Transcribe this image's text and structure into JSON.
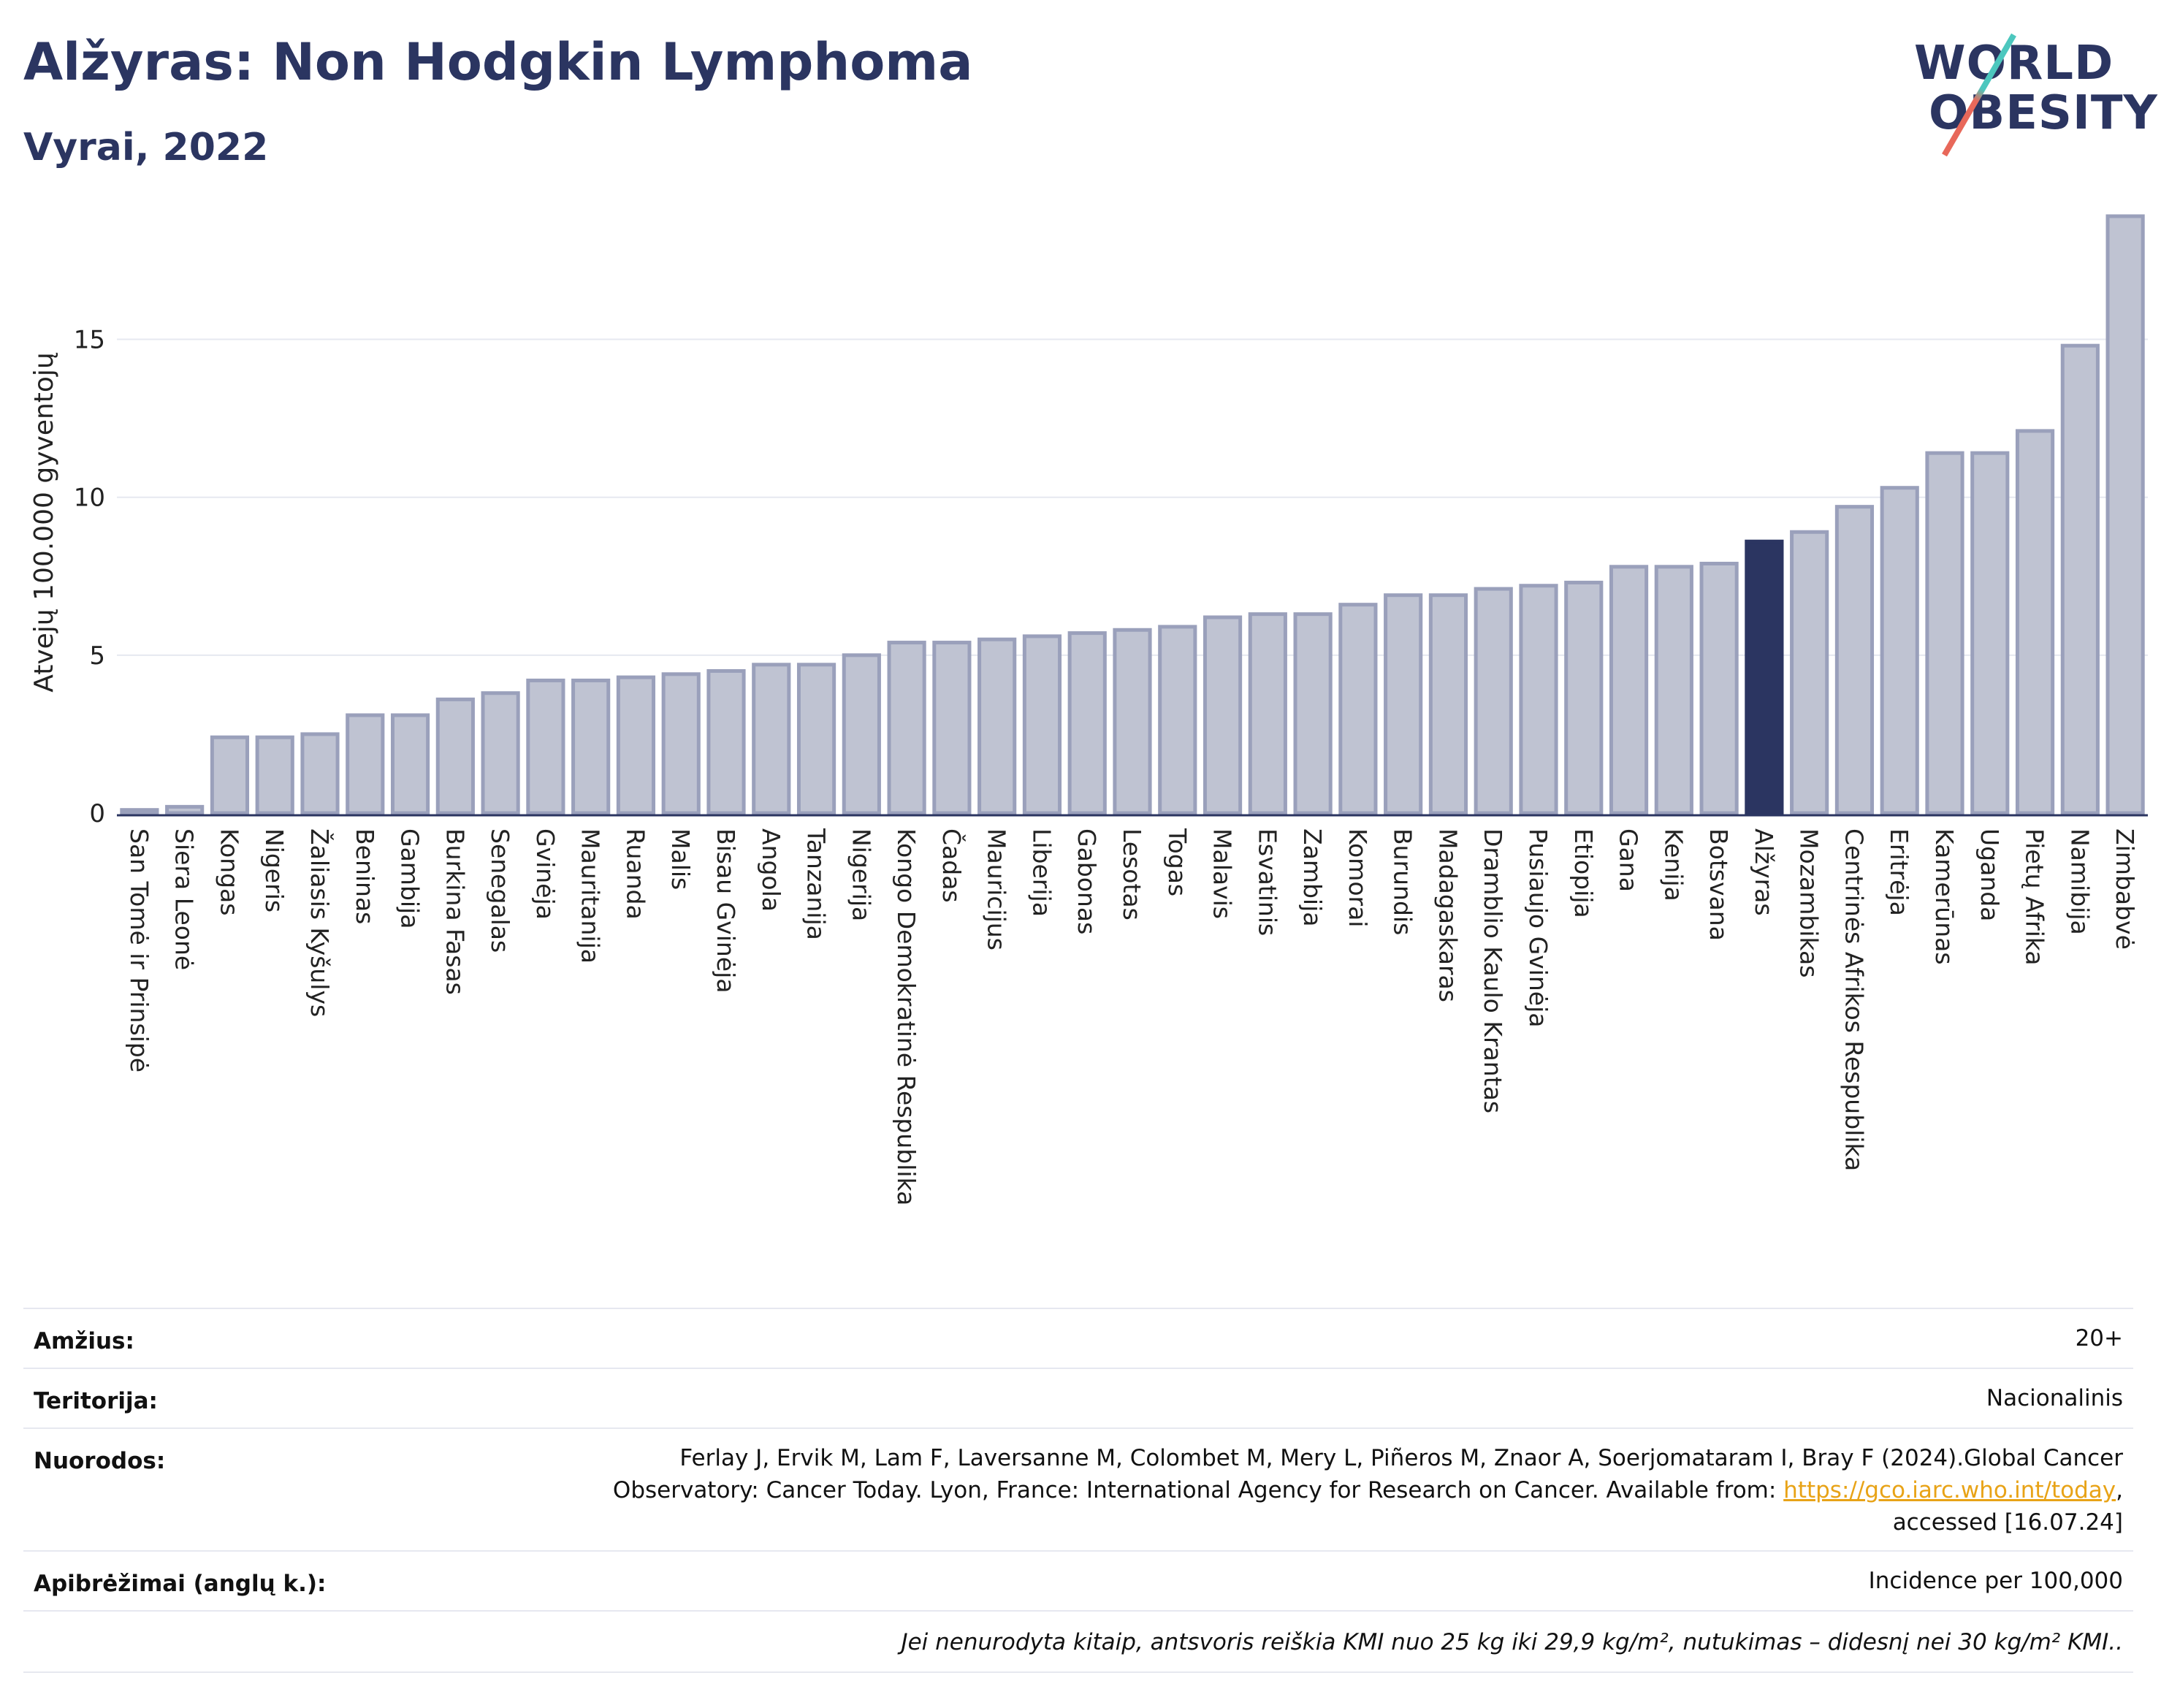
{
  "header": {
    "title": "Alžyras: Non Hodgkin Lymphoma",
    "subtitle": "Vyrai, 2022"
  },
  "logo": {
    "line1": "WORLD",
    "line2": "OBESITY"
  },
  "chart_data": {
    "type": "bar",
    "ylabel": "Atvejų 100.000 gyventojų",
    "ylim": [
      0,
      19.5
    ],
    "yticks": [
      0,
      5,
      10,
      15
    ],
    "grid": true,
    "highlight": "Alžyras",
    "colors": {
      "bar": "#bfc3d2",
      "bar_border": "#9aa0bb",
      "highlight": "#2b3561",
      "axis": "#2b3561",
      "grid": "#e6e8f0"
    },
    "categories": [
      "San Tomė ir Prinsipė",
      "Siera Leonė",
      "Kongas",
      "Nigeris",
      "Žaliasis Kyšulys",
      "Beninas",
      "Gambija",
      "Burkina Fasas",
      "Senegalas",
      "Gvinėja",
      "Mauritanija",
      "Ruanda",
      "Malis",
      "Bisau Gvinėja",
      "Angola",
      "Tanzanija",
      "Nigerija",
      "Kongo Demokratinė Respublika",
      "Čadas",
      "Mauricijus",
      "Liberija",
      "Gabonas",
      "Lesotas",
      "Togas",
      "Malavis",
      "Esvatinis",
      "Zambija",
      "Komorai",
      "Burundis",
      "Madagaskaras",
      "Dramblio Kaulo Krantas",
      "Pusiaujo Gvinėja",
      "Etiopija",
      "Gana",
      "Kenija",
      "Botsvana",
      "Alžyras",
      "Mozambikas",
      "Centrinės Afrikos Respublika",
      "Eritrėja",
      "Kamerūnas",
      "Uganda",
      "Pietų Afrika",
      "Namibija",
      "Zimbabvė"
    ],
    "values": [
      0.1,
      0.2,
      2.4,
      2.4,
      2.5,
      3.1,
      3.1,
      3.6,
      3.8,
      4.2,
      4.2,
      4.3,
      4.4,
      4.5,
      4.7,
      4.7,
      5.0,
      5.4,
      5.4,
      5.5,
      5.6,
      5.7,
      5.8,
      5.9,
      6.2,
      6.3,
      6.3,
      6.6,
      6.9,
      6.9,
      7.1,
      7.2,
      7.3,
      7.8,
      7.8,
      7.9,
      8.6,
      8.9,
      9.7,
      10.3,
      11.4,
      11.4,
      12.1,
      14.8,
      18.9
    ]
  },
  "info": {
    "age": {
      "label": "Amžius:",
      "value": "20+"
    },
    "territory": {
      "label": "Teritorija:",
      "value": "Nacionalinis"
    },
    "references": {
      "label": "Nuorodos:",
      "line1": "Ferlay J, Ervik M, Lam F, Laversanne M, Colombet M, Mery L, Piñeros M, Znaor A, Soerjomataram I, Bray F (2024).Global Cancer",
      "line2_pre": "Observatory: Cancer Today. Lyon, France: International Agency for Research on Cancer. Available from: ",
      "link": "https://gco.iarc.who.int/today",
      "line2_post": ",",
      "line3": "accessed [16.07.24]"
    },
    "definitions": {
      "label": "Apibrėžimai (anglų k.):",
      "value": "Incidence per 100,000"
    },
    "note": "Jei nenurodyta kitaip, antsvoris reiškia KMI nuo 25 kg iki 29,9 kg/m², nutukimas – didesnį nei 30 kg/m² KMI.."
  }
}
